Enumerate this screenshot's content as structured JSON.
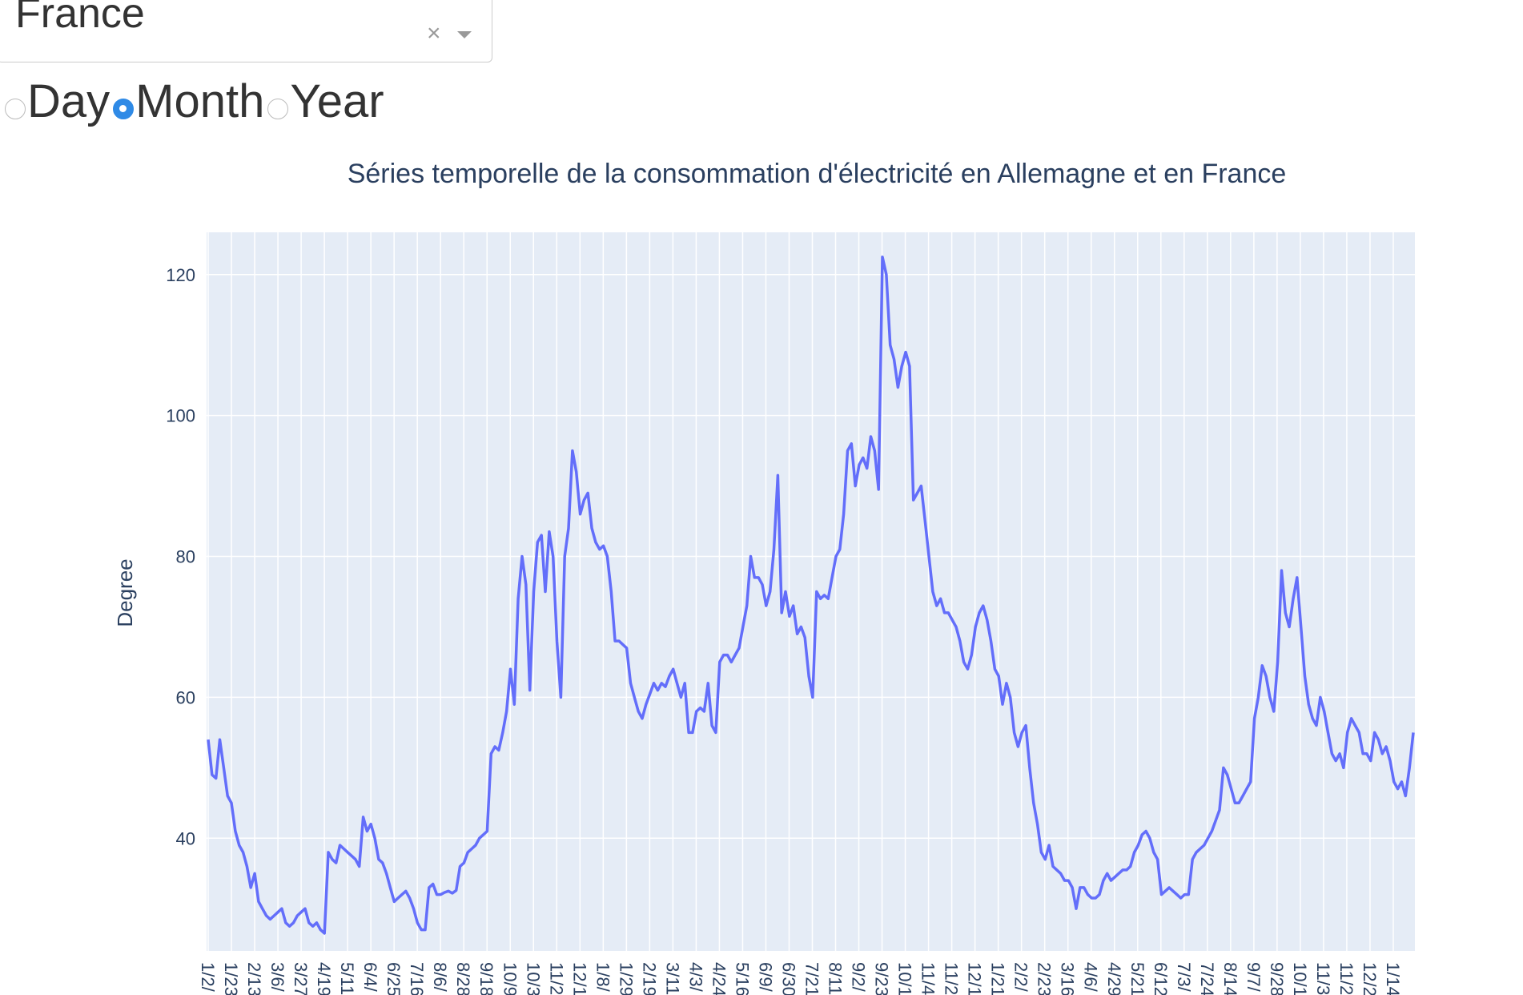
{
  "dropdown": {
    "value": "France",
    "clear_icon": "×",
    "arrow_icon": "chevron-down-icon"
  },
  "radio": {
    "options": [
      "Day",
      "Month",
      "Year"
    ],
    "selected": "Month"
  },
  "chart_data": {
    "type": "line",
    "title": "Séries temporelle de la consommation d'électricité en Allemagne et en France",
    "xlabel": "",
    "ylabel": "Degree",
    "ylim": [
      24,
      126
    ],
    "yticks": [
      40,
      60,
      80,
      100,
      120
    ],
    "grid": true,
    "line_color": "#636efa",
    "background": "#e5ecf6",
    "x_tick_labels": [
      "1/2/",
      "1/23",
      "2/13",
      "3/6/",
      "3/27",
      "4/19",
      "5/11",
      "6/4/",
      "6/25",
      "7/16",
      "8/6/",
      "8/28",
      "9/18",
      "10/9",
      "10/3",
      "11/2",
      "12/1",
      "1/8/",
      "1/29",
      "2/19",
      "3/11",
      "4/3/",
      "4/24",
      "5/16",
      "6/9/",
      "6/30",
      "7/21",
      "8/11",
      "9/2/",
      "9/23",
      "10/1",
      "11/4",
      "11/2",
      "12/1",
      "1/21",
      "2/2/",
      "2/23",
      "3/16",
      "4/6/",
      "4/29",
      "5/21",
      "6/12",
      "7/3/",
      "7/24",
      "8/14",
      "9/7/",
      "9/28",
      "10/1",
      "11/3",
      "11/2",
      "12/2",
      "1/14"
    ],
    "values": [
      54,
      49,
      48.5,
      54,
      50,
      46,
      45,
      41,
      39,
      38,
      36,
      33,
      35,
      31,
      30,
      29,
      28.5,
      29,
      29.5,
      30,
      28,
      27.5,
      28,
      29,
      29.5,
      30,
      28,
      27.5,
      28,
      27,
      26.5,
      38,
      37,
      36.5,
      39,
      38.5,
      38,
      37.5,
      37,
      36,
      43,
      41,
      42,
      40,
      37,
      36.5,
      35,
      33,
      31,
      31.5,
      32,
      32.5,
      31.5,
      30,
      28,
      27,
      27,
      33,
      33.5,
      32,
      32,
      32.3,
      32.5,
      32.2,
      32.6,
      36,
      36.5,
      38,
      38.5,
      39,
      40,
      40.5,
      41,
      52,
      53,
      52.5,
      55,
      58,
      64,
      59,
      74,
      80,
      76,
      61,
      75,
      82,
      83,
      75,
      83.5,
      80,
      68,
      60,
      80,
      84,
      95,
      92,
      86,
      88,
      89,
      84,
      82,
      81,
      81.5,
      80,
      75,
      68,
      68,
      67.5,
      67,
      62,
      60,
      58,
      57,
      59,
      60.5,
      62,
      61,
      62,
      61.5,
      63,
      64,
      62,
      60,
      62,
      55,
      55,
      58,
      58.5,
      58,
      62,
      56,
      55,
      65,
      66,
      66,
      65,
      66,
      67,
      70,
      73,
      80,
      77,
      77,
      76,
      73,
      75,
      81,
      91.5,
      72,
      75,
      71.5,
      73,
      69,
      70,
      68.5,
      63,
      60,
      75,
      74,
      74.5,
      74,
      77,
      80,
      81,
      86,
      95,
      96,
      90,
      93,
      94,
      92.5,
      97,
      95,
      89.5,
      122.5,
      120,
      110,
      108,
      104,
      107,
      109,
      107,
      88,
      89,
      90,
      85,
      80,
      75,
      73,
      74,
      72,
      72,
      71,
      70,
      68,
      65,
      64,
      66,
      70,
      72,
      73,
      71,
      68,
      64,
      63,
      59,
      62,
      60,
      55,
      53,
      55,
      56,
      50,
      45,
      42,
      38,
      37,
      39,
      36,
      35.5,
      35,
      34,
      34,
      33,
      30,
      33,
      33,
      32,
      31.5,
      31.5,
      32,
      34,
      35,
      34,
      34.5,
      35,
      35.5,
      35.5,
      36,
      38,
      39,
      40.5,
      41,
      40,
      38,
      37,
      32,
      32.5,
      33,
      32.5,
      32,
      31.5,
      32,
      32,
      37,
      38,
      38.5,
      39,
      40,
      41,
      42.5,
      44,
      50,
      49,
      47,
      45,
      45,
      46,
      47,
      48,
      57,
      60,
      64.5,
      63,
      60,
      58,
      65,
      78,
      72,
      70,
      74,
      77,
      70,
      63,
      59,
      57,
      56,
      60,
      58,
      55,
      52,
      51,
      52,
      50,
      55,
      57,
      56,
      55,
      52,
      52,
      51,
      55,
      54,
      52,
      53,
      51,
      48,
      47,
      48,
      46,
      50,
      55
    ]
  }
}
